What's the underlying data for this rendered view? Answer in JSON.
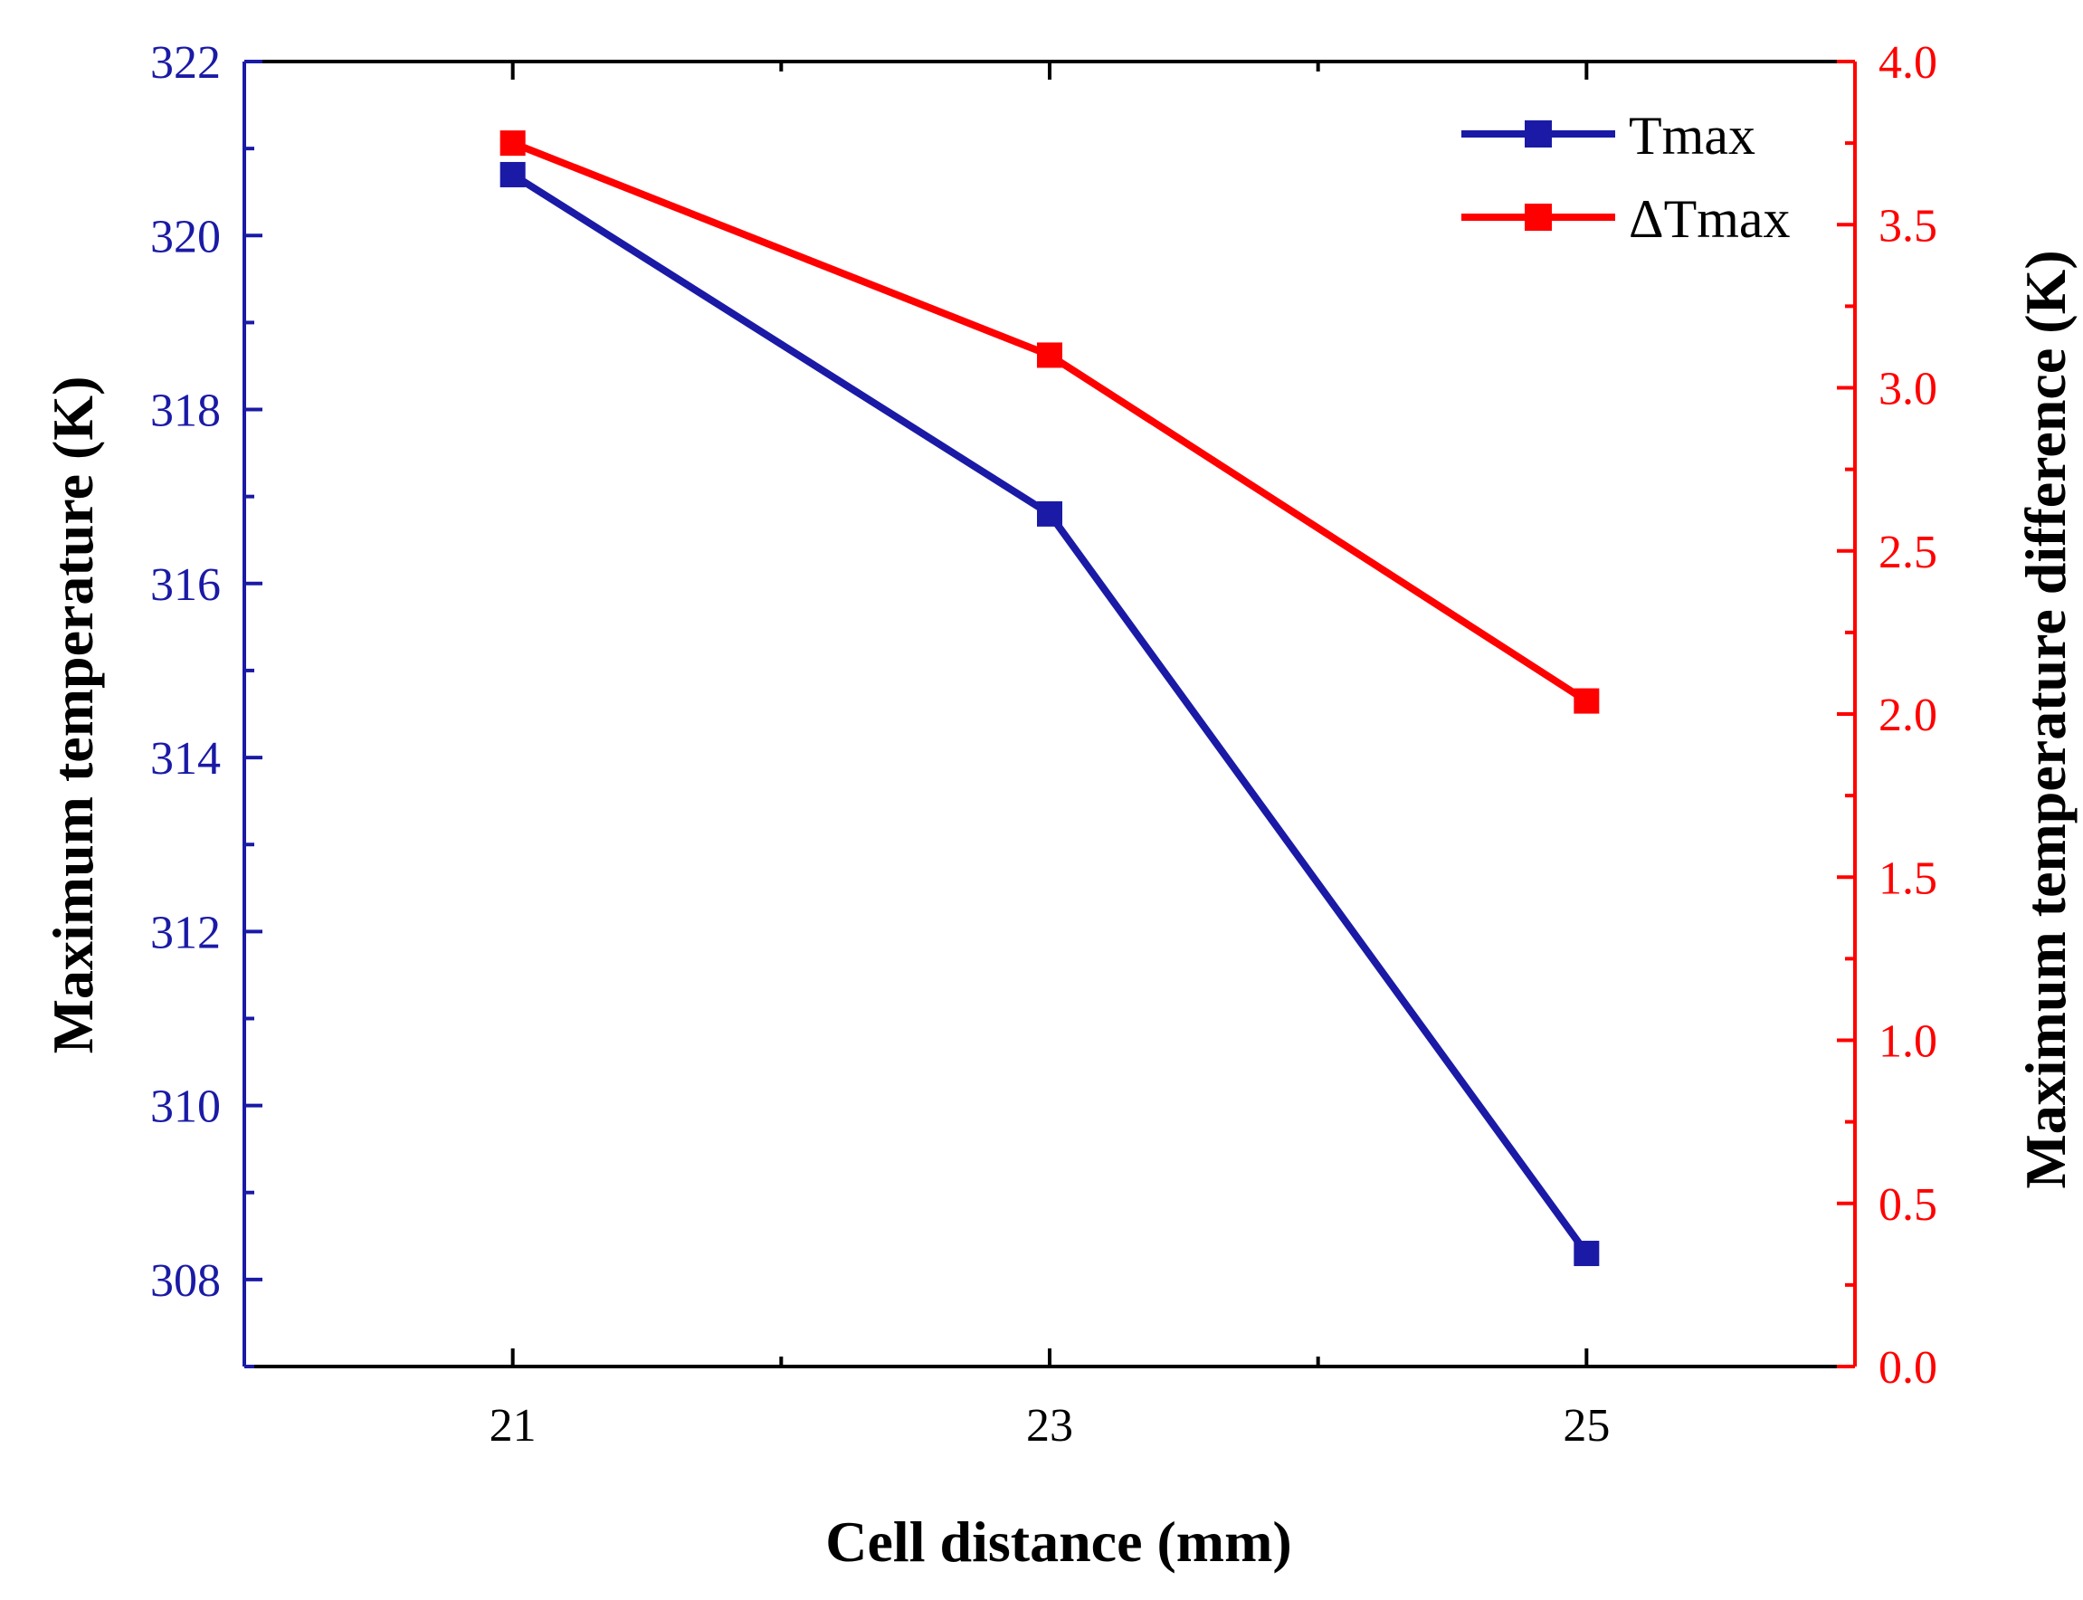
{
  "chart_data": {
    "type": "line",
    "title": "",
    "xlabel": "Cell distance (mm)",
    "ylabel_left": "Maximum temperature (K)",
    "ylabel_right": "Maximum temperature difference (K)",
    "x": [
      21,
      23,
      25
    ],
    "xlim": [
      20,
      26
    ],
    "xticks": [
      "21",
      "23",
      "25"
    ],
    "ylim_left": [
      307,
      322
    ],
    "yticks_left": [
      "308",
      "310",
      "312",
      "314",
      "316",
      "318",
      "320",
      "322"
    ],
    "ylim_right": [
      0,
      4
    ],
    "yticks_right": [
      "0.0",
      "0.5",
      "1.0",
      "1.5",
      "2.0",
      "2.5",
      "3.0",
      "3.5",
      "4.0"
    ],
    "legend_position": "top-right",
    "grid": false,
    "series": [
      {
        "name": "Tmax",
        "axis": "left",
        "color": "#1a1aa6",
        "values": [
          320.7,
          316.8,
          308.3
        ]
      },
      {
        "name": "ΔTmax",
        "axis": "right",
        "color": "#ff0000",
        "values": [
          3.75,
          3.1,
          2.04
        ]
      }
    ],
    "colors": {
      "left_axis": "#1a1aa6",
      "right_axis": "#ff0000",
      "frame": "#000000"
    }
  }
}
